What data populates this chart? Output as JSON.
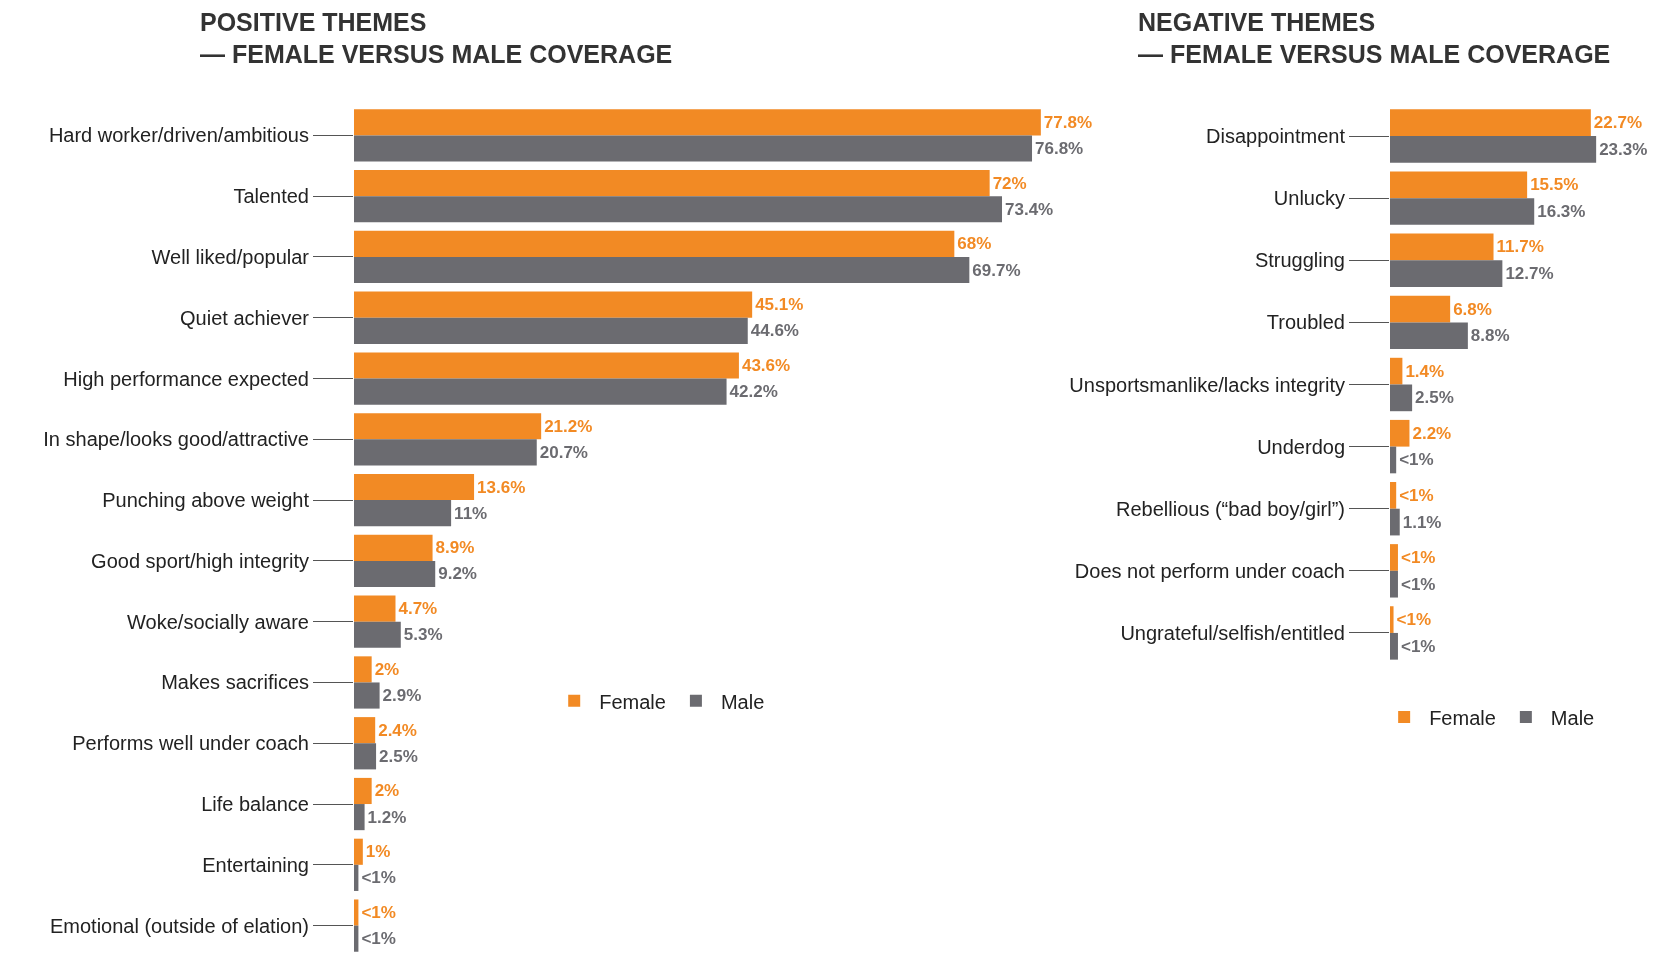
{
  "chart_data": [
    {
      "type": "bar",
      "orientation": "horizontal",
      "title": "POSITIVE THEMES\n— FEMALE VERSUS MALE COVERAGE",
      "categories": [
        "Hard worker/driven/ambitious",
        "Talented",
        "Well liked/popular",
        "Quiet achiever",
        "High performance expected",
        "In shape/looks good/attractive",
        "Punching above weight",
        "Good sport/high integrity",
        "Woke/socially aware",
        "Makes sacrifices",
        "Performs well under coach",
        "Life balance",
        "Entertaining",
        "Emotional (outside of elation)"
      ],
      "series": [
        {
          "name": "Female",
          "color": "#f28a24",
          "values": [
            77.8,
            72,
            68,
            45.1,
            43.6,
            21.2,
            13.6,
            8.9,
            4.7,
            2,
            2.4,
            2,
            1,
            0.5
          ],
          "value_labels": [
            "77.8%",
            "72%",
            "68%",
            "45.1%",
            "43.6%",
            "21.2%",
            "13.6%",
            "8.9%",
            "4.7%",
            "2%",
            "2.4%",
            "2%",
            "1%",
            "<1%"
          ]
        },
        {
          "name": "Male",
          "color": "#6b6b70",
          "values": [
            76.8,
            73.4,
            69.7,
            44.6,
            42.2,
            20.7,
            11,
            9.2,
            5.3,
            2.9,
            2.5,
            1.2,
            0.5,
            0.5
          ],
          "value_labels": [
            "76.8%",
            "73.4%",
            "69.7%",
            "44.6%",
            "42.2%",
            "20.7%",
            "11%",
            "9.2%",
            "5.3%",
            "2.9%",
            "2.5%",
            "1.2%",
            "<1%",
            "<1%"
          ]
        }
      ],
      "tick_labels": "y",
      "grid": false,
      "legend": "center"
    },
    {
      "type": "bar",
      "orientation": "horizontal",
      "title": "NEGATIVE THEMES\n— FEMALE VERSUS MALE COVERAGE",
      "categories": [
        "Disappointment",
        "Unlucky",
        "Struggling",
        "Troubled",
        "Unsportsmanlike/lacks integrity",
        "Underdog",
        "Rebellious (“bad boy/girl”)",
        "Does not perform under coach",
        "Ungrateful/selfish/entitled"
      ],
      "series": [
        {
          "name": "Female",
          "color": "#f28a24",
          "values": [
            22.7,
            15.5,
            11.7,
            6.8,
            1.4,
            2.2,
            0.7,
            0.9,
            0.4
          ],
          "value_labels": [
            "22.7%",
            "15.5%",
            "11.7%",
            "6.8%",
            "1.4%",
            "2.2%",
            "<1%",
            "<1%",
            "<1%"
          ]
        },
        {
          "name": "Male",
          "color": "#6b6b70",
          "values": [
            23.3,
            16.3,
            12.7,
            8.8,
            2.5,
            0.7,
            1.1,
            0.9,
            0.9
          ],
          "value_labels": [
            "23.3%",
            "16.3%",
            "12.7%",
            "8.8%",
            "2.5%",
            "<1%",
            "1.1%",
            "<1%",
            "<1%"
          ]
        }
      ],
      "tick_labels": "y",
      "grid": false,
      "legend": "bottom"
    }
  ]
}
